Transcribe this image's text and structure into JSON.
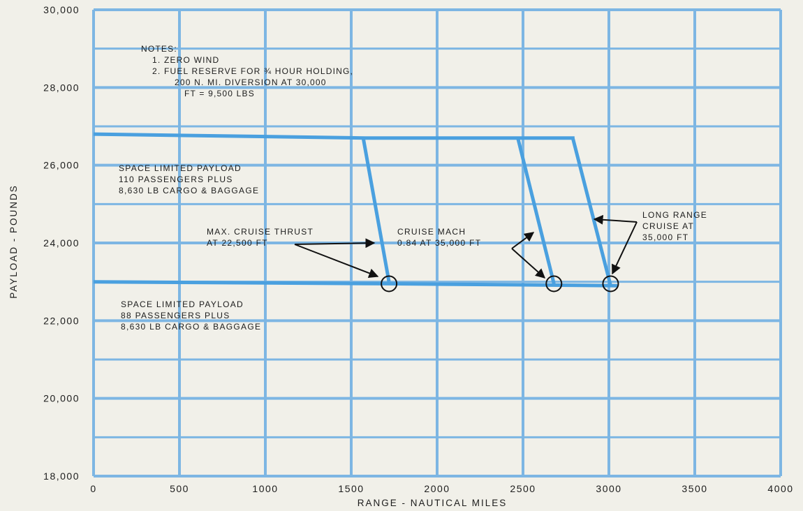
{
  "chart_data": {
    "type": "line",
    "xlabel": "RANGE - NAUTICAL MILES",
    "ylabel": "PAYLOAD - POUNDS",
    "xlim": [
      0,
      4000
    ],
    "ylim": [
      18000,
      30000
    ],
    "x_ticks": [
      0,
      500,
      1000,
      1500,
      2000,
      2500,
      3000,
      3500,
      4000
    ],
    "x_tick_labels": [
      "0",
      "500",
      "1000",
      "1500",
      "2000",
      "2500",
      "3000",
      "3500",
      "4000"
    ],
    "y_ticks": [
      18000,
      20000,
      22000,
      24000,
      26000,
      28000,
      30000
    ],
    "y_tick_labels": [
      "18,000",
      "20,000",
      "22,000",
      "24,000",
      "26,000",
      "28,000",
      "30,000"
    ],
    "grid": true,
    "grid_color": "#7db6e3",
    "line_color": "#4aa0df",
    "marker_color": "#111111",
    "series": [
      {
        "values_xy": [
          [
            0,
            26800
          ],
          [
            1580,
            26700
          ],
          [
            2800,
            26700
          ]
        ]
      },
      {
        "values_xy": [
          [
            0,
            23000
          ],
          [
            1720,
            22950
          ],
          [
            3050,
            22900
          ]
        ]
      },
      {
        "values_xy": [
          [
            1570,
            26700
          ],
          [
            1720,
            23000
          ]
        ]
      },
      {
        "values_xy": [
          [
            2470,
            26700
          ],
          [
            2680,
            22950
          ]
        ]
      },
      {
        "values_xy": [
          [
            2790,
            26700
          ],
          [
            3010,
            22900
          ]
        ]
      }
    ],
    "markers": [
      {
        "x": 1720,
        "y": 22950
      },
      {
        "x": 2680,
        "y": 22950
      },
      {
        "x": 3010,
        "y": 22950
      }
    ],
    "annotations": [
      {
        "id": "notes",
        "lines": [
          "NOTES:",
          "1.  ZERO WIND",
          "2.  FUEL RESERVE FOR ¾ HOUR HOLDING,",
          "200 N. MI. DIVERSION AT 30,000",
          "FT = 9,500 LBS"
        ]
      },
      {
        "id": "upper_region",
        "lines": [
          "SPACE LIMITED PAYLOAD",
          "110 PASSENGERS PLUS",
          "8,630 LB CARGO & BAGGAGE"
        ]
      },
      {
        "id": "lower_region",
        "lines": [
          "SPACE LIMITED PAYLOAD",
          "88 PASSENGERS PLUS",
          "8,630 LB CARGO & BAGGAGE"
        ]
      },
      {
        "id": "max_cruise",
        "lines": [
          "MAX. CRUISE THRUST",
          "AT 22,500 FT"
        ]
      },
      {
        "id": "cruise_mach",
        "lines": [
          "CRUISE MACH",
          "0.84 AT 35,000 FT"
        ]
      },
      {
        "id": "long_range",
        "lines": [
          "LONG RANGE",
          "CRUISE AT",
          "35,000 FT"
        ]
      }
    ]
  }
}
